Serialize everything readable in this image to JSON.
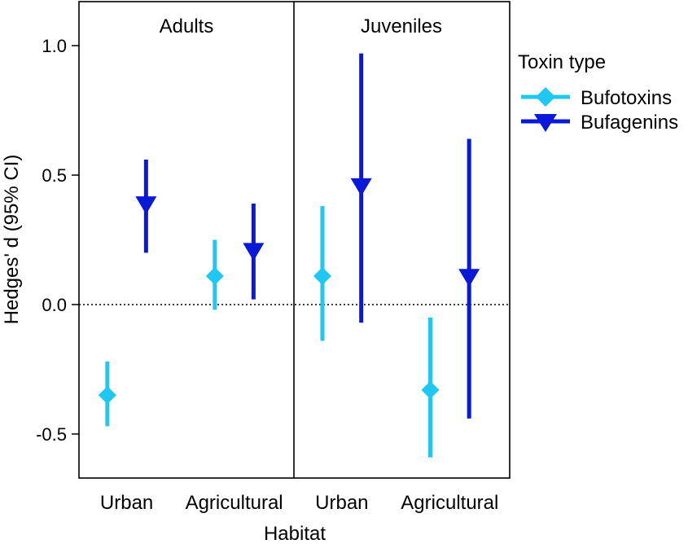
{
  "chart_data": {
    "type": "scatter",
    "title": "",
    "xlabel": "Habitat",
    "ylabel": "Hedges' d (95% CI)",
    "ylim": [
      -0.67,
      1.17
    ],
    "yticks": [
      -0.5,
      0.0,
      0.5,
      1.0
    ],
    "ytick_labels": [
      "-0.5",
      "0.0",
      "0.5",
      "1.0"
    ],
    "reference_line": {
      "y": 0.0,
      "style": "dotted"
    },
    "panels": [
      "Adults",
      "Juveniles"
    ],
    "categories": [
      "Urban",
      "Agricultural"
    ],
    "legend": {
      "title": "Toxin type",
      "position": "right"
    },
    "series": [
      {
        "name": "Bufotoxins",
        "color": "#1ec8f2",
        "marker": "diamond",
        "points": [
          {
            "panel": "Adults",
            "category": "Urban",
            "y": -0.35,
            "lo": -0.47,
            "hi": -0.22
          },
          {
            "panel": "Adults",
            "category": "Agricultural",
            "y": 0.11,
            "lo": -0.02,
            "hi": 0.25
          },
          {
            "panel": "Juveniles",
            "category": "Urban",
            "y": 0.11,
            "lo": -0.14,
            "hi": 0.38
          },
          {
            "panel": "Juveniles",
            "category": "Agricultural",
            "y": -0.33,
            "lo": -0.59,
            "hi": -0.05
          }
        ]
      },
      {
        "name": "Bufagenins",
        "color": "#0a18d8",
        "marker": "triangle-down",
        "points": [
          {
            "panel": "Adults",
            "category": "Urban",
            "y": 0.38,
            "lo": 0.2,
            "hi": 0.56
          },
          {
            "panel": "Adults",
            "category": "Agricultural",
            "y": 0.2,
            "lo": 0.02,
            "hi": 0.39
          },
          {
            "panel": "Juveniles",
            "category": "Urban",
            "y": 0.45,
            "lo": -0.07,
            "hi": 0.97
          },
          {
            "panel": "Juveniles",
            "category": "Agricultural",
            "y": 0.1,
            "lo": -0.44,
            "hi": 0.64
          }
        ]
      }
    ]
  }
}
